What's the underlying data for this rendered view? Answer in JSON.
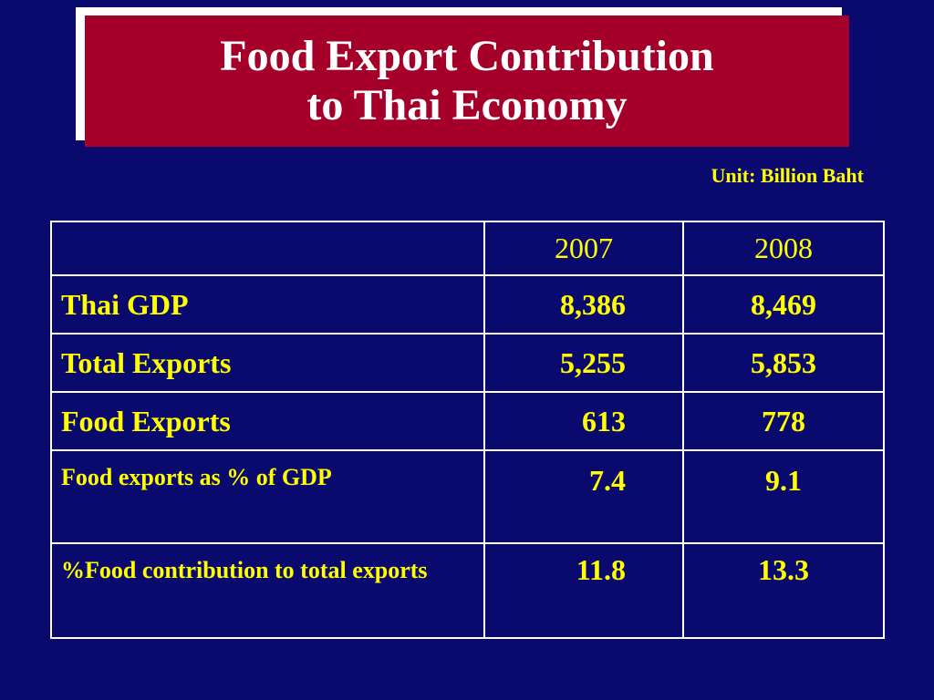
{
  "title": {
    "line1": "Food Export Contribution",
    "line2": "to Thai Economy"
  },
  "unit_label": "Unit: Billion Baht",
  "table": {
    "headers": [
      "",
      "2007",
      "2008"
    ],
    "rows": [
      {
        "label": "Thai GDP",
        "y2007": "8,386",
        "y2008": "8,469"
      },
      {
        "label": "Total Exports",
        "y2007": "5,255",
        "y2008": "5,853"
      },
      {
        "label": "Food Exports",
        "y2007": "613",
        "y2008": "778"
      },
      {
        "label": "Food exports as % of GDP",
        "y2007": "7.4",
        "y2008": "9.1"
      },
      {
        "label": "%Food contribution to total exports",
        "y2007": "11.8",
        "y2008": "13.3"
      }
    ]
  },
  "colors": {
    "background": "#0a0a6e",
    "title_box": "#a5002a",
    "title_text": "#ffffff",
    "table_text": "#ffff00",
    "table_border": "#ffffff"
  }
}
